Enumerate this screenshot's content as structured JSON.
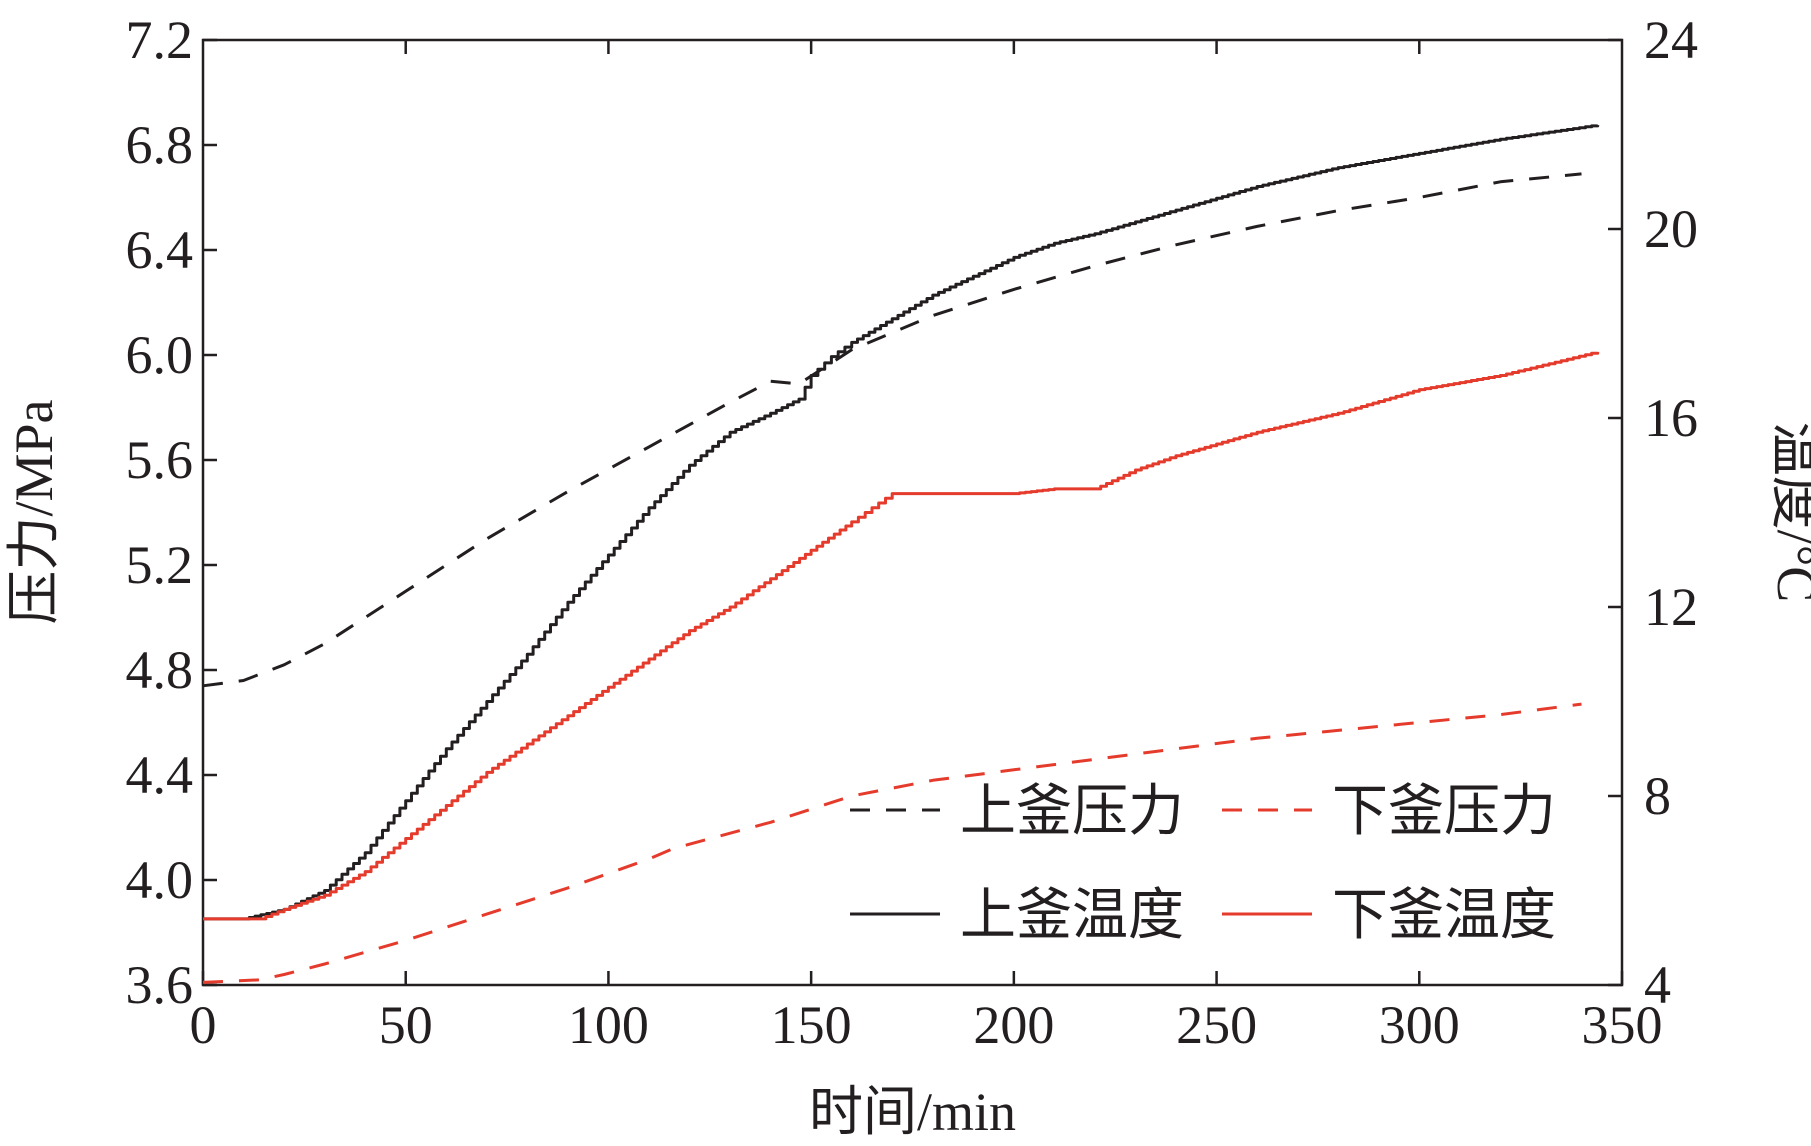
{
  "chart_data": {
    "type": "line",
    "title": "",
    "xlabel": "时间/min",
    "ylabel_left": "压力/MPa",
    "ylabel_right": "温度/°C",
    "xlim": [
      0,
      350
    ],
    "ylim_left": [
      3.6,
      7.2
    ],
    "ylim_right": [
      4,
      24
    ],
    "grid": false,
    "legend_position": "bottom-right",
    "x_ticks": [
      0,
      50,
      100,
      150,
      200,
      250,
      300,
      350
    ],
    "x_tick_labels": [
      "0",
      "50",
      "100",
      "150",
      "200",
      "250",
      "300",
      "350"
    ],
    "y_left_ticks": [
      3.6,
      4.0,
      4.4,
      4.8,
      5.2,
      5.6,
      6.0,
      6.4,
      6.8,
      7.2
    ],
    "y_left_tick_labels": [
      "3.6",
      "4.0",
      "4.4",
      "4.8",
      "5.2",
      "5.6",
      "6.0",
      "6.4",
      "6.8",
      "7.2"
    ],
    "y_right_ticks": [
      4,
      8,
      12,
      16,
      20,
      24
    ],
    "y_right_tick_labels": [
      "4",
      "8",
      "12",
      "16",
      "20",
      "24"
    ],
    "series": [
      {
        "name": "上釜压力",
        "axis": "left",
        "color": "#231f20",
        "dash": "dashed",
        "x": [
          0,
          10,
          20,
          30,
          40,
          50,
          57,
          70,
          90,
          110,
          130,
          140,
          147,
          160,
          180,
          200,
          220,
          240,
          260,
          280,
          300,
          320,
          340
        ],
        "y": [
          4.74,
          4.76,
          4.82,
          4.9,
          5.0,
          5.1,
          5.17,
          5.3,
          5.48,
          5.65,
          5.82,
          5.9,
          5.89,
          6.02,
          6.15,
          6.25,
          6.34,
          6.42,
          6.49,
          6.55,
          6.6,
          6.66,
          6.69
        ]
      },
      {
        "name": "下釜压力",
        "axis": "left",
        "color": "#e53b2c",
        "dash": "dashed",
        "x": [
          0,
          14,
          20,
          30,
          50,
          70,
          90,
          110,
          116,
          140,
          160,
          180,
          200,
          220,
          240,
          260,
          280,
          300,
          320,
          340
        ],
        "y": [
          3.61,
          3.62,
          3.64,
          3.68,
          3.77,
          3.87,
          3.97,
          4.08,
          4.12,
          4.22,
          4.32,
          4.38,
          4.42,
          4.46,
          4.5,
          4.54,
          4.57,
          4.6,
          4.63,
          4.67
        ]
      },
      {
        "name": "上釜温度",
        "axis": "right",
        "color": "#231f20",
        "dash": "solid",
        "x": [
          0,
          10,
          20,
          30,
          40,
          50,
          60,
          70,
          80,
          90,
          100,
          110,
          120,
          130,
          140,
          147,
          150,
          155,
          160,
          170,
          180,
          190,
          200,
          210,
          220,
          240,
          260,
          280,
          300,
          320,
          344
        ],
        "y": [
          5.4,
          5.4,
          5.6,
          6.0,
          6.8,
          7.9,
          9.0,
          10.0,
          11.0,
          12.1,
          13.1,
          14.1,
          15.0,
          15.7,
          16.1,
          16.4,
          16.9,
          17.3,
          17.6,
          18.1,
          18.6,
          19.0,
          19.4,
          19.7,
          19.9,
          20.4,
          20.9,
          21.3,
          21.6,
          21.9,
          22.2
        ]
      },
      {
        "name": "下釜温度",
        "axis": "right",
        "color": "#e53b2c",
        "dash": "solid",
        "x": [
          0,
          14,
          20,
          30,
          40,
          50,
          60,
          70,
          80,
          90,
          100,
          110,
          120,
          130,
          140,
          150,
          160,
          165,
          170,
          180,
          200,
          210,
          220,
          230,
          240,
          260,
          280,
          300,
          320,
          344
        ],
        "y": [
          5.4,
          5.4,
          5.6,
          5.9,
          6.4,
          7.1,
          7.8,
          8.5,
          9.1,
          9.7,
          10.3,
          10.9,
          11.5,
          12.0,
          12.6,
          13.2,
          13.8,
          14.1,
          14.4,
          14.4,
          14.4,
          14.5,
          14.5,
          14.9,
          15.2,
          15.7,
          16.1,
          16.6,
          16.9,
          17.4
        ]
      }
    ]
  }
}
